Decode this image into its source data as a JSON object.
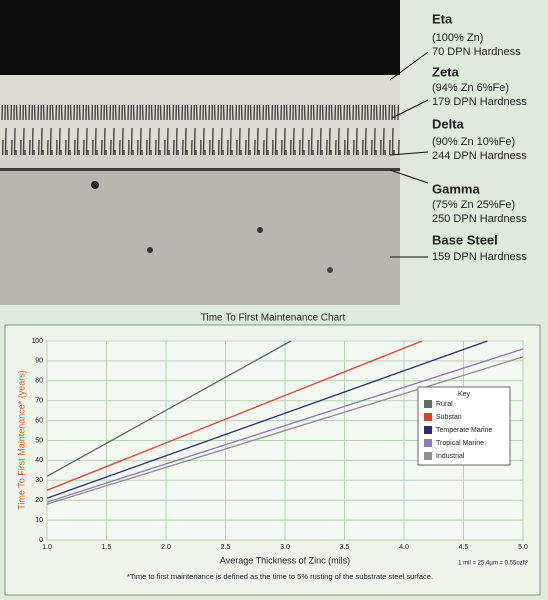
{
  "micrograph": {
    "layers": [
      {
        "name": "Eta",
        "composition": "(100% Zn)",
        "hardness": "70 DPN Hardness"
      },
      {
        "name": "Zeta",
        "composition": "(94% Zn 6%Fe)",
        "hardness": "179 DPN Hardness"
      },
      {
        "name": "Delta",
        "composition": "(90% Zn 10%Fe)",
        "hardness": "244 DPN Hardness"
      },
      {
        "name": "Gamma",
        "composition": "(75% Zn 25%Fe)",
        "hardness": "250 DPN Hardness"
      },
      {
        "name": "Base Steel",
        "hardness": "159 DPN Hardness"
      }
    ]
  },
  "chart_data": {
    "type": "line",
    "title": "Time To First Maintenance Chart",
    "x_label": "Average Thickness of Zinc (mils)",
    "y_label": "Time To First Maintenance* (years)",
    "unit_note": "1 mil = 25.4µm = 0.55ozft²",
    "footnote": "*Time to first maintenance is defined as the time to 5% rusting of the substrate steel surface.",
    "legend_title": "Key",
    "legend_position": "right",
    "grid": true,
    "xlim": [
      1,
      5
    ],
    "ylim": [
      0,
      100
    ],
    "xticks": [
      {
        "value": 1,
        "label": "1.0"
      },
      1.5,
      {
        "value": 2,
        "label": "2.0"
      },
      2.5,
      {
        "value": 3,
        "label": "3.0"
      },
      3.5,
      {
        "value": 4,
        "label": "4.0"
      },
      4.5,
      {
        "value": 5,
        "label": "5.0"
      }
    ],
    "yticks": [
      0,
      10,
      20,
      30,
      40,
      50,
      60,
      70,
      80,
      90,
      100
    ],
    "series": [
      {
        "name": "Rural",
        "color": "#5b6b5c",
        "x": [
          1,
          3.05
        ],
        "values": [
          32,
          100
        ]
      },
      {
        "name": "Substan",
        "color": "#e0402a",
        "x": [
          1,
          4.15
        ],
        "values": [
          25,
          100
        ]
      },
      {
        "name": "Temperate Marine",
        "color": "#2d2e6e",
        "x": [
          1,
          4.7
        ],
        "values": [
          21,
          100
        ]
      },
      {
        "name": "Tropical Marine",
        "color": "#8a78b8",
        "x": [
          1,
          5
        ],
        "values": [
          19,
          96
        ]
      },
      {
        "name": "Industrial",
        "color": "#8c8c8c",
        "x": [
          1,
          5
        ],
        "values": [
          18,
          92
        ]
      }
    ]
  }
}
